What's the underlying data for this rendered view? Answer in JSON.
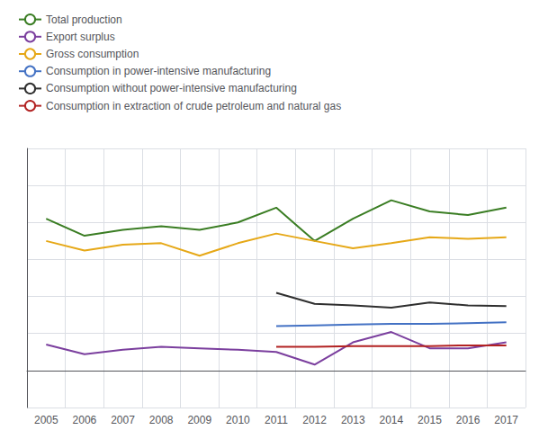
{
  "chart_data": {
    "type": "line",
    "categories": [
      "2005",
      "2006",
      "2007",
      "2008",
      "2009",
      "2010",
      "2011",
      "2012",
      "2013",
      "2014",
      "2015",
      "2016",
      "2017"
    ],
    "series": [
      {
        "name": "Total production",
        "color": "#3a7d23",
        "values": [
          20.5,
          18.2,
          19.0,
          19.5,
          19.0,
          20.0,
          22.0,
          17.5,
          20.5,
          23.0,
          21.5,
          21.0,
          22.0
        ]
      },
      {
        "name": "Export surplus",
        "color": "#7b3f9e",
        "values": [
          3.5,
          2.2,
          2.8,
          3.2,
          3.0,
          2.8,
          2.5,
          0.8,
          3.8,
          5.2,
          3.0,
          3.0,
          3.8
        ]
      },
      {
        "name": "Gross consumption",
        "color": "#e6a817",
        "values": [
          17.5,
          16.2,
          17.0,
          17.2,
          15.5,
          17.2,
          18.5,
          17.5,
          16.5,
          17.2,
          18.0,
          17.8,
          18.0
        ]
      },
      {
        "name": "Consumption in power-intensive manufacturing",
        "color": "#4472c4",
        "values": [
          null,
          null,
          null,
          null,
          null,
          null,
          6.0,
          6.1,
          6.2,
          6.3,
          6.3,
          6.4,
          6.5
        ]
      },
      {
        "name": "Consumption without power-intensive manufacturing",
        "color": "#2f2f2f",
        "values": [
          null,
          null,
          null,
          null,
          null,
          null,
          10.5,
          9.0,
          8.8,
          8.5,
          9.2,
          8.8,
          8.7
        ]
      },
      {
        "name": "Consumption in extraction of crude petroleum and natural gas",
        "color": "#b22222",
        "values": [
          null,
          null,
          null,
          null,
          null,
          null,
          3.2,
          3.2,
          3.3,
          3.3,
          3.3,
          3.4,
          3.4
        ]
      }
    ],
    "ylim": [
      -5,
      30
    ],
    "yticks": [
      -5,
      0,
      5,
      10,
      15,
      20,
      25,
      30
    ],
    "grid": true,
    "legend": "top-left",
    "tick_labels": "x"
  }
}
